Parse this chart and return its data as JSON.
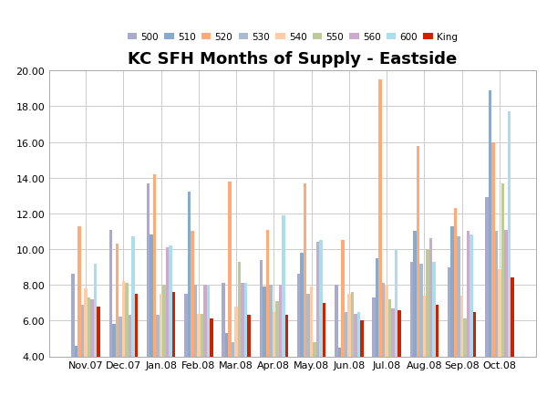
{
  "title": "KC SFH Months of Supply - Eastside",
  "months": [
    "Nov.07",
    "Dec.07",
    "Jan.08",
    "Feb.08",
    "Mar.08",
    "Apr.08",
    "May.08",
    "Jun.08",
    "Jul.08",
    "Aug.08",
    "Sep.08",
    "Oct.08"
  ],
  "series_labels": [
    "500",
    "510",
    "520",
    "530",
    "540",
    "550",
    "560",
    "600",
    "King"
  ],
  "series_colors": [
    "#aaaacc",
    "#88aacc",
    "#ffaa77",
    "#aabbcc",
    "#ffccaa",
    "#bbcc99",
    "#ccaacc",
    "#aaddee",
    "#cc2200"
  ],
  "data": {
    "500": [
      8.6,
      11.1,
      13.7,
      7.5,
      8.1,
      9.4,
      8.6,
      8.0,
      7.3,
      9.3,
      9.0,
      12.9
    ],
    "510": [
      4.6,
      5.8,
      10.8,
      13.2,
      5.3,
      7.9,
      9.8,
      4.5,
      9.5,
      11.0,
      11.3,
      18.9
    ],
    "520": [
      11.3,
      10.3,
      14.2,
      11.0,
      13.8,
      11.1,
      13.7,
      10.5,
      19.5,
      15.8,
      12.3,
      16.0
    ],
    "530": [
      6.9,
      6.2,
      6.3,
      8.0,
      4.8,
      8.0,
      7.5,
      6.5,
      8.1,
      9.2,
      10.7,
      11.0
    ],
    "540": [
      7.8,
      8.2,
      7.5,
      6.4,
      6.8,
      6.5,
      7.9,
      7.5,
      8.0,
      7.4,
      7.4,
      8.9
    ],
    "550": [
      7.3,
      8.1,
      8.0,
      6.4,
      9.3,
      7.1,
      4.8,
      7.6,
      7.2,
      10.0,
      6.1,
      13.7
    ],
    "560": [
      7.2,
      6.3,
      10.1,
      8.0,
      8.1,
      8.0,
      10.4,
      6.4,
      6.7,
      10.6,
      11.0,
      11.1
    ],
    "600": [
      9.2,
      10.7,
      10.2,
      8.0,
      8.1,
      11.9,
      10.5,
      6.5,
      10.0,
      9.3,
      10.8,
      17.7
    ],
    "King": [
      6.8,
      7.5,
      7.6,
      6.1,
      6.3,
      6.3,
      7.0,
      6.0,
      6.6,
      6.9,
      6.5,
      8.4
    ]
  },
  "ylim": [
    4.0,
    20.0
  ],
  "yticks": [
    4.0,
    6.0,
    8.0,
    10.0,
    12.0,
    14.0,
    16.0,
    18.0,
    20.0
  ],
  "background_color": "#ffffff",
  "grid_color": "#cccccc",
  "bar_width": 0.085,
  "title_fontsize": 13,
  "tick_fontsize": 8,
  "legend_fontsize": 7.5
}
